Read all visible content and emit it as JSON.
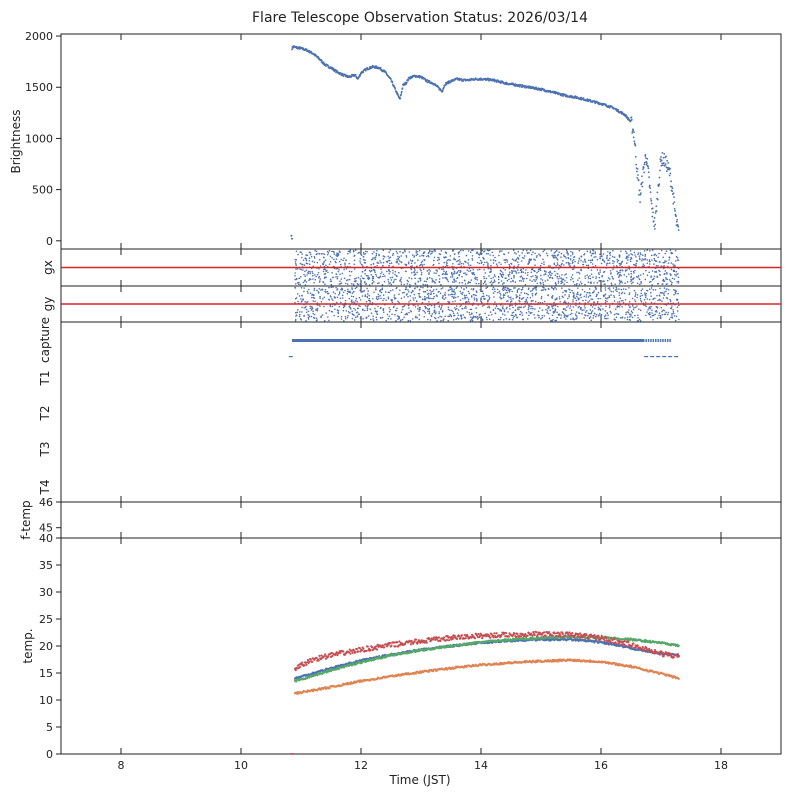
{
  "chart_data": {
    "type": "scatter",
    "title": "Flare Telescope Observation Status: 2026/03/14",
    "xlabel": "Time (JST)",
    "xlim": [
      7,
      19
    ],
    "xticks": [
      8,
      10,
      12,
      14,
      16,
      18
    ],
    "colors": {
      "blue": "#4c72b0",
      "orange": "#dd8452",
      "green": "#55a868",
      "red": "#c44e52"
    },
    "panels": [
      {
        "id": "brightness",
        "ylabel": "Brightness",
        "ylim": [
          -80,
          2020
        ],
        "yticks": [
          0,
          500,
          1000,
          1500,
          2000
        ],
        "series": [
          {
            "name": "brightness",
            "color": "#4c72b0",
            "x": [
              10.83,
              10.85,
              10.88,
              10.9,
              11.0,
              11.1,
              11.2,
              11.3,
              11.4,
              11.5,
              11.55,
              11.6,
              11.7,
              11.8,
              11.9,
              11.95,
              12.0,
              12.1,
              12.2,
              12.3,
              12.4,
              12.5,
              12.6,
              12.65,
              12.7,
              12.75,
              12.8,
              12.9,
              13.0,
              13.1,
              13.2,
              13.3,
              13.35,
              13.4,
              13.5,
              13.6,
              13.7,
              13.8,
              13.9,
              14.0,
              14.2,
              14.4,
              14.6,
              14.8,
              15.0,
              15.2,
              15.4,
              15.6,
              15.8,
              16.0,
              16.2,
              16.4,
              16.5,
              16.55,
              16.6,
              16.65,
              16.7,
              16.75,
              16.8,
              16.85,
              16.9,
              16.95,
              17.0,
              17.05,
              17.1,
              17.15,
              17.2,
              17.25,
              17.3
            ],
            "y": [
              1870,
              1880,
              1900,
              1890,
              1880,
              1860,
              1830,
              1780,
              1720,
              1690,
              1670,
              1650,
              1620,
              1600,
              1620,
              1580,
              1640,
              1680,
              1700,
              1690,
              1650,
              1570,
              1440,
              1380,
              1520,
              1540,
              1590,
              1610,
              1600,
              1560,
              1540,
              1490,
              1460,
              1530,
              1560,
              1580,
              1570,
              1570,
              1580,
              1580,
              1570,
              1540,
              1520,
              1500,
              1480,
              1450,
              1420,
              1400,
              1370,
              1340,
              1300,
              1230,
              1160,
              1050,
              700,
              420,
              650,
              850,
              600,
              300,
              150,
              500,
              800,
              790,
              740,
              650,
              450,
              200,
              60
            ]
          }
        ],
        "extra_points": {
          "x": [
            10.84,
            10.85
          ],
          "y": [
            50,
            20
          ]
        }
      },
      {
        "id": "gx",
        "ylabel": "gx",
        "series": [
          {
            "name": "gx",
            "color": "#4c72b0",
            "scatter_band": [
              10.9,
              17.3
            ]
          }
        ],
        "hline": {
          "color": "#d62728"
        }
      },
      {
        "id": "gy",
        "ylabel": "gy",
        "series": [
          {
            "name": "gy",
            "color": "#4c72b0",
            "scatter_band": [
              10.9,
              17.3
            ]
          }
        ],
        "hline": {
          "color": "#d62728"
        }
      },
      {
        "id": "status",
        "row_labels": [
          "capture",
          "T1",
          "T2",
          "T3",
          "T4"
        ],
        "capture_segments": [
          [
            10.85,
            16.7
          ],
          [
            16.7,
            17.15
          ]
        ],
        "marker_start": 10.83,
        "marker_end": 17.3
      },
      {
        "id": "f-temp",
        "ylabel": "f-temp",
        "ylim": [
          44.6,
          46
        ],
        "yticks": [
          45,
          46
        ]
      },
      {
        "id": "temp",
        "ylabel": "temp.",
        "ylim": [
          0,
          40
        ],
        "yticks": [
          0,
          5,
          10,
          15,
          20,
          25,
          30,
          35,
          40
        ],
        "series": [
          {
            "name": "blue",
            "color": "#4c72b0",
            "x": [
              10.9,
              11.5,
              12.0,
              12.5,
              13.0,
              13.5,
              14.0,
              14.5,
              15.0,
              15.5,
              16.0,
              16.5,
              17.0,
              17.3
            ],
            "y": [
              14.0,
              15.9,
              17.3,
              18.4,
              19.3,
              20.0,
              20.6,
              21.0,
              21.2,
              21.2,
              20.7,
              19.6,
              18.6,
              18.3
            ]
          },
          {
            "name": "orange",
            "color": "#dd8452",
            "x": [
              10.9,
              11.5,
              12.0,
              12.5,
              13.0,
              13.5,
              14.0,
              14.5,
              15.0,
              15.5,
              16.0,
              16.5,
              17.0,
              17.3
            ],
            "y": [
              11.2,
              12.4,
              13.5,
              14.4,
              15.2,
              15.9,
              16.5,
              16.9,
              17.2,
              17.4,
              17.1,
              16.2,
              14.9,
              14.0
            ]
          },
          {
            "name": "green",
            "color": "#55a868",
            "x": [
              10.9,
              11.5,
              12.0,
              12.5,
              13.0,
              13.5,
              14.0,
              14.5,
              15.0,
              15.5,
              16.0,
              16.5,
              17.0,
              17.3
            ],
            "y": [
              13.5,
              15.5,
              17.0,
              18.3,
              19.2,
              20.0,
              20.7,
              21.2,
              21.5,
              21.7,
              21.6,
              21.2,
              20.6,
              20.0
            ]
          },
          {
            "name": "red",
            "color": "#c44e52",
            "x": [
              10.9,
              11.2,
              11.5,
              12.0,
              12.5,
              13.0,
              13.5,
              14.0,
              14.5,
              15.0,
              15.5,
              16.0,
              16.5,
              17.0,
              17.3
            ],
            "y": [
              15.8,
              17.5,
              18.3,
              19.3,
              20.2,
              20.9,
              21.5,
              21.9,
              22.1,
              22.2,
              22.1,
              21.5,
              20.2,
              18.6,
              18.0
            ]
          }
        ]
      }
    ]
  }
}
